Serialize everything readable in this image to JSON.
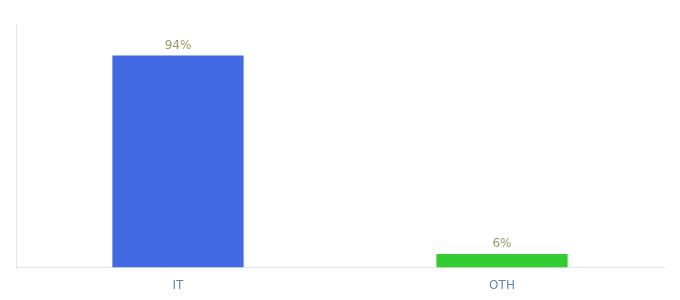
{
  "chart_data": {
    "type": "bar",
    "categories": [
      "IT",
      "OTH"
    ],
    "values": [
      94,
      6
    ],
    "colors": [
      "#4169e1",
      "#33cc33"
    ],
    "value_labels": [
      "94%",
      "6%"
    ],
    "data_labels": true,
    "ylim": [
      0,
      108
    ],
    "tick_labels": "x",
    "grid": false
  }
}
